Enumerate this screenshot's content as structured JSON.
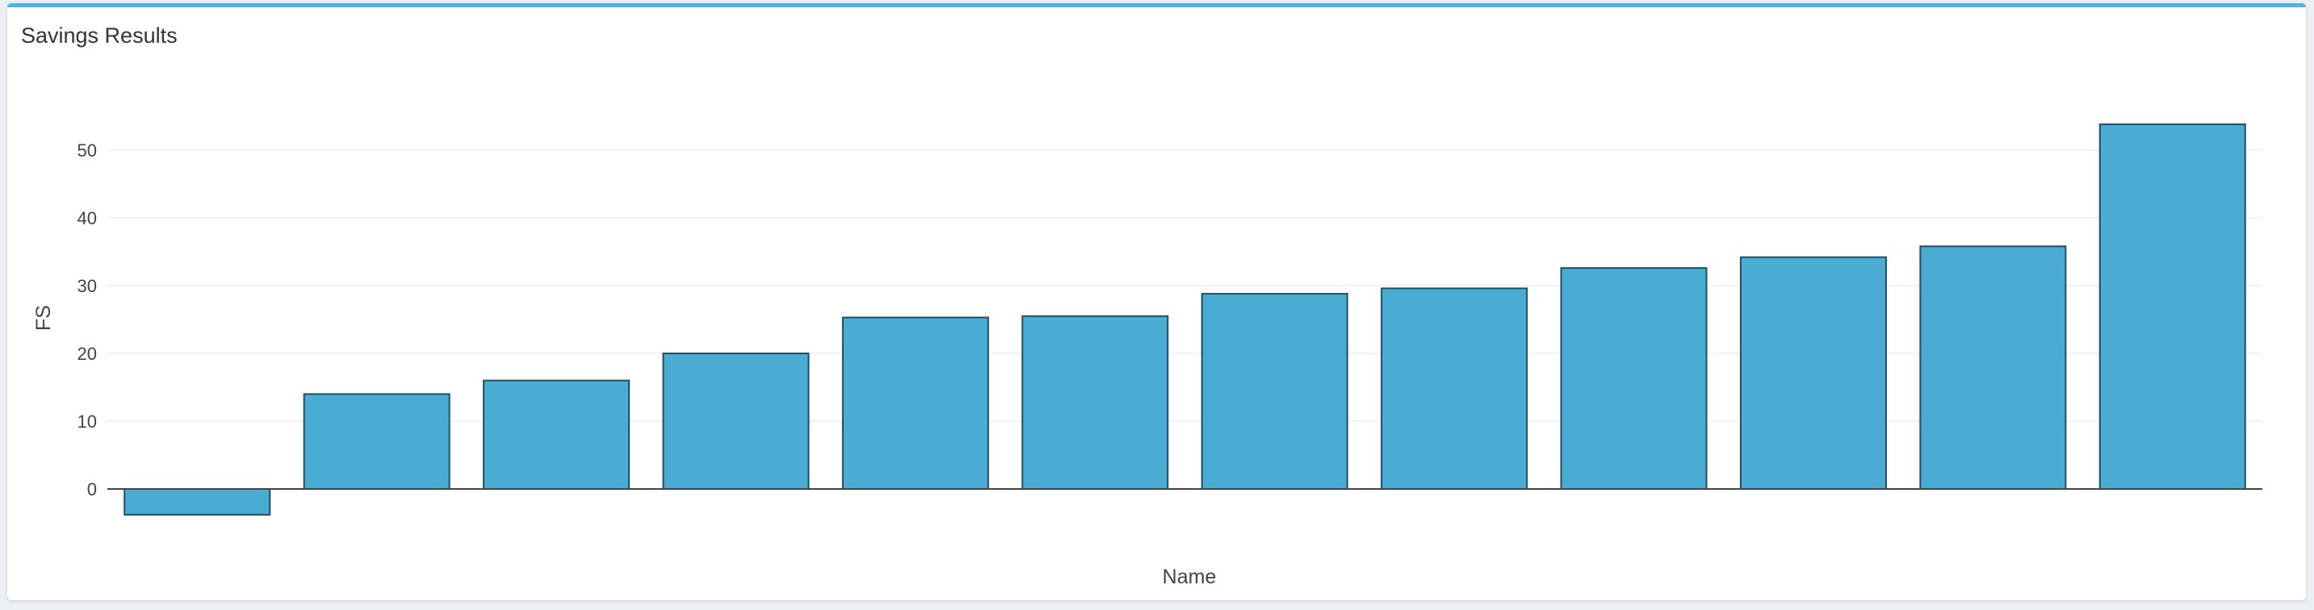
{
  "panel": {
    "title": "Savings Results"
  },
  "colors": {
    "bar_fill": "#4bacd3",
    "bar_stroke": "#1e4f66",
    "accent": "#4fb3e0"
  },
  "chart_data": {
    "type": "bar",
    "title": "",
    "xlabel": "Name",
    "ylabel": "FS",
    "ylim": [
      -7,
      60
    ],
    "yticks": [
      0,
      10,
      20,
      30,
      40,
      50
    ],
    "grid": true,
    "legend": "none",
    "categories": [
      "",
      "",
      "",
      "",
      "",
      "",
      "",
      "",
      "",
      "",
      "",
      ""
    ],
    "values": [
      -3.8,
      14,
      16,
      20,
      25.3,
      25.5,
      28.8,
      29.6,
      32.6,
      34.2,
      35.8,
      53.8
    ]
  }
}
